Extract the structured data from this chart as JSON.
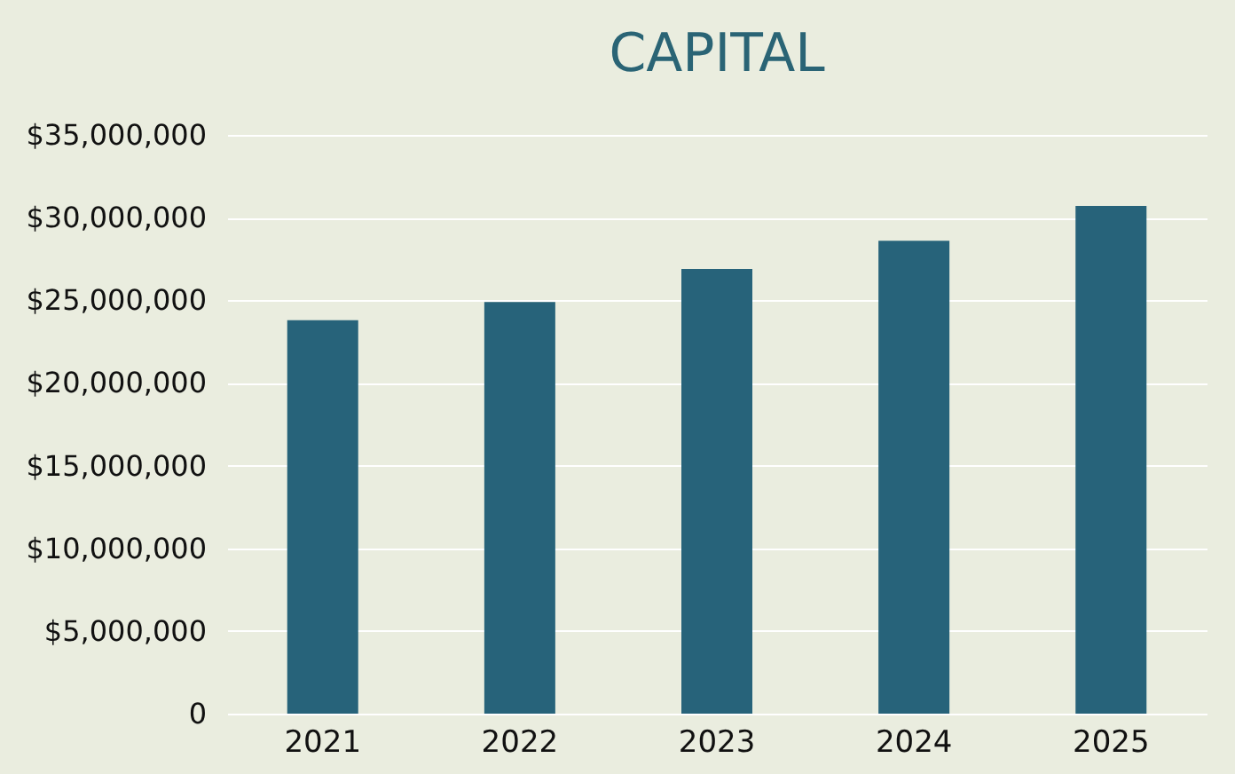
{
  "chart_data": {
    "type": "bar",
    "title": "CAPITAL",
    "categories": [
      "2021",
      "2022",
      "2023",
      "2024",
      "2025"
    ],
    "values": [
      23800000,
      24900000,
      26900000,
      28600000,
      30700000
    ],
    "color": "#27637a",
    "ylim": [
      0,
      35000000
    ],
    "yticks": [
      {
        "value": 0,
        "label": "0"
      },
      {
        "value": 5000000,
        "label": "$5,000,000"
      },
      {
        "value": 10000000,
        "label": "$10,000,000"
      },
      {
        "value": 15000000,
        "label": "$15,000,000"
      },
      {
        "value": 20000000,
        "label": "$20,000,000"
      },
      {
        "value": 25000000,
        "label": "$25,000,000"
      },
      {
        "value": 30000000,
        "label": "$30,000,000"
      },
      {
        "value": 35000000,
        "label": "$35,000,000"
      }
    ],
    "grid": "y"
  }
}
